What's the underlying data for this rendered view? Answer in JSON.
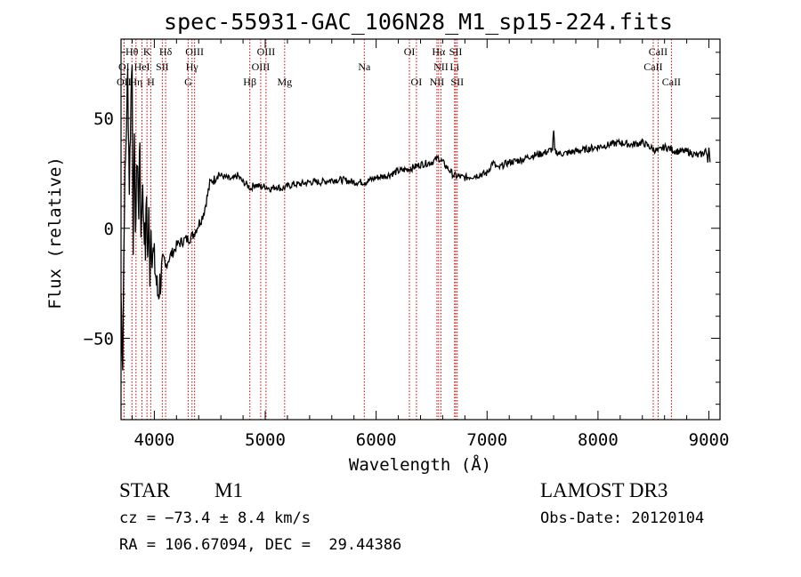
{
  "chart_data": {
    "type": "line",
    "title": "spec-55931-GAC_106N28_M1_sp15-224.fits",
    "xlabel": "Wavelength (Å)",
    "ylabel": "Flux (relative)",
    "xlim": [
      3700,
      9100
    ],
    "ylim": [
      -87,
      86
    ],
    "xticks": [
      4000,
      5000,
      6000,
      7000,
      8000,
      9000
    ],
    "yticks": [
      -50,
      0,
      50
    ],
    "grid": false,
    "series": [
      {
        "color": "#000000",
        "x": [
          3700,
          3715,
          3730,
          3745,
          3760,
          3775,
          3790,
          3800,
          3810,
          3820,
          3830,
          3840,
          3850,
          3860,
          3870,
          3880,
          3890,
          3900,
          3910,
          3920,
          3930,
          3940,
          3950,
          3960,
          3970,
          3980,
          3990,
          4000,
          4010,
          4020,
          4030,
          4040,
          4050,
          4060,
          4070,
          4080,
          4100,
          4120,
          4150,
          4180,
          4200,
          4220,
          4250,
          4280,
          4300,
          4330,
          4350,
          4380,
          4400,
          4430,
          4450,
          4480,
          4500,
          4520,
          4540,
          4560,
          4580,
          4600,
          4650,
          4700,
          4750,
          4800,
          4830,
          4850,
          4870,
          4900,
          4950,
          5000,
          5050,
          5100,
          5150,
          5200,
          5250,
          5300,
          5400,
          5500,
          5600,
          5700,
          5800,
          5900,
          6000,
          6100,
          6200,
          6300,
          6400,
          6500,
          6560,
          6600,
          6650,
          6700,
          6800,
          6900,
          7000,
          7050,
          7100,
          7150,
          7200,
          7300,
          7400,
          7500,
          7550,
          7590,
          7600,
          7610,
          7650,
          7700,
          7800,
          7900,
          8000,
          8100,
          8200,
          8300,
          8400,
          8500,
          8540,
          8600,
          8660,
          8700,
          8800,
          8900,
          8950,
          8970,
          8990,
          9000,
          9010
        ],
        "y": [
          -30,
          -60,
          10,
          40,
          70,
          20,
          60,
          80,
          -20,
          50,
          -10,
          30,
          25,
          10,
          40,
          -5,
          20,
          10,
          0,
          -10,
          15,
          -15,
          5,
          -20,
          0,
          -10,
          -12,
          -15,
          -20,
          -25,
          -30,
          -28,
          -25,
          -22,
          -20,
          -20,
          -18,
          -15,
          -12,
          -10,
          -8,
          -7,
          -6,
          -5,
          -5,
          -4,
          -3,
          0,
          2,
          5,
          8,
          15,
          20,
          22,
          22,
          24,
          25,
          24,
          23,
          22,
          24,
          21,
          20,
          19,
          18,
          20,
          19,
          19,
          18,
          19,
          18,
          19,
          20,
          20,
          21,
          21,
          22,
          22,
          21,
          21,
          23,
          24,
          26,
          27,
          29,
          30,
          32,
          30,
          27,
          24,
          23,
          24,
          25,
          30,
          27,
          29,
          30,
          31,
          33,
          34,
          35,
          36,
          44,
          35,
          34,
          34,
          35,
          36,
          37,
          38,
          39,
          38,
          39,
          36,
          35,
          37,
          36,
          35,
          35,
          33,
          34,
          36,
          30,
          38,
          30
        ],
        "noise": true
      }
    ],
    "spectral_lines": [
      {
        "label": "Hθ",
        "x": 3798,
        "row": 0
      },
      {
        "label": "K",
        "x": 3934,
        "row": 0
      },
      {
        "label": "Hδ",
        "x": 4102,
        "row": 0
      },
      {
        "label": "OIII",
        "x": 4363,
        "row": 0
      },
      {
        "label": "OIII",
        "x": 5007,
        "row": 0
      },
      {
        "label": "OI",
        "x": 6300,
        "row": 0
      },
      {
        "label": "Hα",
        "x": 6563,
        "row": 0
      },
      {
        "label": "SII",
        "x": 6717,
        "row": 0
      },
      {
        "label": "CaII",
        "x": 8542,
        "row": 0
      },
      {
        "label": "OI",
        "x": 3727,
        "row": 1
      },
      {
        "label": "HeI",
        "x": 3889,
        "row": 1
      },
      {
        "label": "SII",
        "x": 4072,
        "row": 1
      },
      {
        "label": "Hγ",
        "x": 4340,
        "row": 1
      },
      {
        "label": "OIII",
        "x": 4959,
        "row": 1
      },
      {
        "label": "Na",
        "x": 5893,
        "row": 1
      },
      {
        "label": "NII",
        "x": 6584,
        "row": 1
      },
      {
        "label": "Li",
        "x": 6707,
        "row": 1
      },
      {
        "label": "CaII",
        "x": 8498,
        "row": 1
      },
      {
        "label": "OII",
        "x": 3727,
        "row": 2
      },
      {
        "label": "Hη",
        "x": 3835,
        "row": 2
      },
      {
        "label": "H",
        "x": 3968,
        "row": 2
      },
      {
        "label": "G",
        "x": 4305,
        "row": 2
      },
      {
        "label": "Hβ",
        "x": 4861,
        "row": 2
      },
      {
        "label": "Mg",
        "x": 5175,
        "row": 2
      },
      {
        "label": "OI",
        "x": 6363,
        "row": 2
      },
      {
        "label": "NII",
        "x": 6548,
        "row": 2
      },
      {
        "label": "SII",
        "x": 6731,
        "row": 2
      },
      {
        "label": "CaII",
        "x": 8662,
        "row": 2
      }
    ],
    "line_color": "#cc0000"
  },
  "info": {
    "class": "STAR",
    "subclass": "M1",
    "survey": "LAMOST DR3",
    "cz": "cz = −73.4 ± 8.4 km/s",
    "obsdate": "Obs-Date: 20120104",
    "radec": "RA = 106.67094, DEC =  29.44386"
  }
}
